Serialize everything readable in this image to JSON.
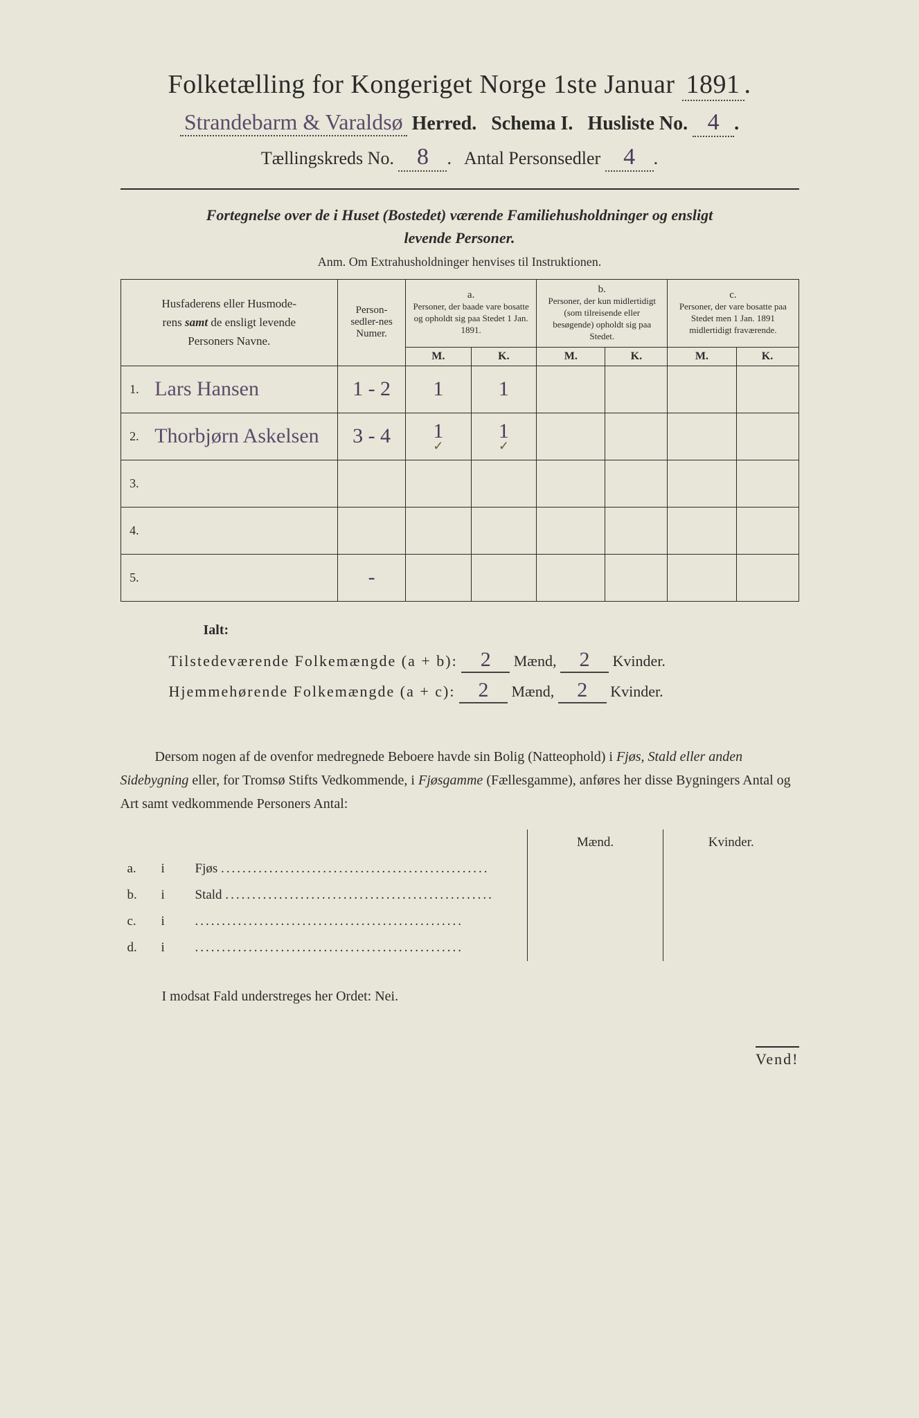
{
  "header": {
    "title_prefix": "Folketælling for Kongeriget Norge 1ste Januar",
    "year": "1891",
    "herred_handwritten": "Strandebarm & Varaldsø",
    "herred_label": "Herred.",
    "schema_label": "Schema I.",
    "husliste_label": "Husliste No.",
    "husliste_no": "4",
    "kreds_label": "Tællingskreds No.",
    "kreds_no": "8",
    "antal_label": "Antal Personsedler",
    "antal_val": "4"
  },
  "fortegnelse": {
    "line1a": "Fortegnelse over de i Huset (Bostedet) værende Familiehusholdninger og ensligt",
    "line1b": "levende Personer.",
    "anm": "Anm.  Om Extrahusholdninger henvises til Instruktionen."
  },
  "table": {
    "col_names": "Husfaderens eller Husmoderens samt de ensligt levende Personers Navne.",
    "col_numer": "Person-sedler-nes Numer.",
    "col_a_label": "a.",
    "col_a": "Personer, der baade vare bosatte og opholdt sig paa Stedet 1 Jan. 1891.",
    "col_b_label": "b.",
    "col_b": "Personer, der kun midlertidigt (som tilreisende eller besøgende) opholdt sig paa Stedet.",
    "col_c_label": "c.",
    "col_c": "Personer, der vare bosatte paa Stedet men 1 Jan. 1891 midlertidigt fraværende.",
    "mk_m": "M.",
    "mk_k": "K.",
    "rows": [
      {
        "n": "1.",
        "name": "Lars Hansen",
        "numer": "1 - 2",
        "am": "1",
        "ak": "1",
        "bm": "",
        "bk": "",
        "cm": "",
        "ck": "",
        "check": false
      },
      {
        "n": "2.",
        "name": "Thorbjørn Askelsen",
        "numer": "3 - 4",
        "am": "1",
        "ak": "1",
        "bm": "",
        "bk": "",
        "cm": "",
        "ck": "",
        "check": true
      },
      {
        "n": "3.",
        "name": "",
        "numer": "",
        "am": "",
        "ak": "",
        "bm": "",
        "bk": "",
        "cm": "",
        "ck": "",
        "check": false
      },
      {
        "n": "4.",
        "name": "",
        "numer": "",
        "am": "",
        "ak": "",
        "bm": "",
        "bk": "",
        "cm": "",
        "ck": "",
        "check": false
      },
      {
        "n": "5.",
        "name": "",
        "numer": "-",
        "am": "",
        "ak": "",
        "bm": "",
        "bk": "",
        "cm": "",
        "ck": "",
        "check": false
      }
    ]
  },
  "totals": {
    "ialt": "Ialt:",
    "line1_label": "Tilstedeværende Folkemængde (a + b):",
    "line2_label": "Hjemmehørende Folkemængde (a + c):",
    "maend": "Mænd,",
    "kvinder": "Kvinder.",
    "t_m": "2",
    "t_k": "2",
    "h_m": "2",
    "h_k": "2"
  },
  "dersom": {
    "text1": "Dersom nogen af de ovenfor medregnede Beboere havde sin Bolig (Natteophold) i ",
    "it1": "Fjøs, Stald eller anden Sidebygning",
    "text2": " eller, for Tromsø Stifts Vedkommende, i ",
    "it2": "Fjøsgamme",
    "text3": " (Fællesgamme), anføres her disse Bygningers Antal og Art samt vedkommende Personers Antal:"
  },
  "bygning": {
    "maend": "Mænd.",
    "kvinder": "Kvinder.",
    "rows": [
      {
        "letter": "a.",
        "i": "i",
        "label": "Fjøs"
      },
      {
        "letter": "b.",
        "i": "i",
        "label": "Stald"
      },
      {
        "letter": "c.",
        "i": "i",
        "label": ""
      },
      {
        "letter": "d.",
        "i": "i",
        "label": ""
      }
    ]
  },
  "footer": {
    "modsat": "I modsat Fald understreges her Ordet: Nei.",
    "vend": "Vend!"
  }
}
